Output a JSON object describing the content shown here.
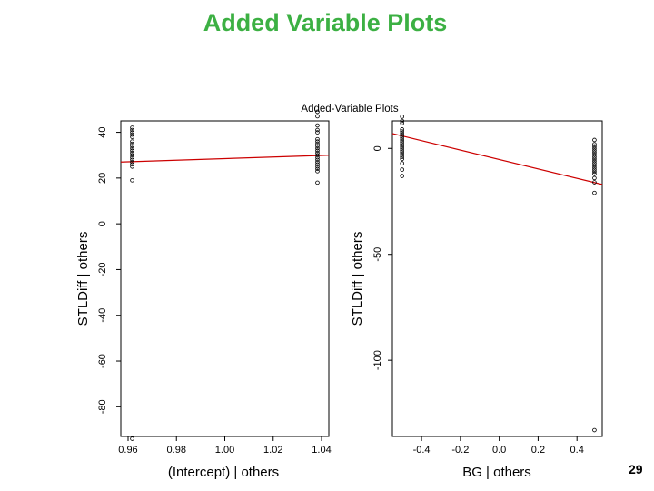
{
  "slide": {
    "title": "Added Variable Plots",
    "page_number": "29"
  },
  "chart_data": {
    "type": "scatter",
    "title": "Added-Variable Plots",
    "panels": [
      {
        "xlabel": "(Intercept) | others",
        "ylabel": "STLDiff  | others",
        "xlim": [
          0.957,
          1.043
        ],
        "ylim": [
          -93,
          45
        ],
        "x_ticks": [
          0.96,
          0.98,
          1.0,
          1.02,
          1.04
        ],
        "x_tick_labels": [
          "0.96",
          "0.98",
          "1.00",
          "1.02",
          "1.04"
        ],
        "y_ticks": [
          -80,
          -60,
          -40,
          -20,
          0,
          20,
          40
        ],
        "y_tick_labels": [
          "-80",
          "-60",
          "-40",
          "-20",
          "0",
          "20",
          "40"
        ],
        "line": {
          "x": [
            0.957,
            1.043
          ],
          "y": [
            27,
            30
          ],
          "color": "#cc0000"
        },
        "clusters": [
          {
            "x": 0.9617,
            "y": [
              42,
              41,
              40,
              39,
              38,
              36,
              35,
              34,
              33,
              32,
              31,
              30,
              29,
              28,
              27,
              26,
              25,
              19,
              -94
            ]
          },
          {
            "x": 1.0383,
            "y": [
              49,
              47,
              43,
              41,
              40,
              37,
              36,
              35,
              34,
              33,
              32,
              31,
              30,
              29,
              28,
              27,
              26,
              25,
              24,
              23,
              18
            ]
          }
        ]
      },
      {
        "xlabel": "BG | others",
        "ylabel": "STLDiff  | others",
        "xlim": [
          -0.55,
          0.53
        ],
        "ylim": [
          -136,
          13
        ],
        "x_ticks": [
          -0.4,
          -0.2,
          0.0,
          0.2,
          0.4
        ],
        "x_tick_labels": [
          "-0.4",
          "-0.2",
          "0.0",
          "0.2",
          "0.4"
        ],
        "y_ticks": [
          -100,
          -50,
          0
        ],
        "y_tick_labels": [
          "-100",
          "-50",
          "0"
        ],
        "line": {
          "x": [
            -0.55,
            0.53
          ],
          "y": [
            7,
            -17
          ],
          "color": "#cc0000"
        },
        "clusters": [
          {
            "x": -0.5,
            "y": [
              15,
              13,
              12,
              9,
              8,
              7,
              6,
              5,
              4,
              3,
              2,
              1,
              0,
              -1,
              -2,
              -3,
              -4,
              -5,
              -7,
              -10,
              -13
            ]
          },
          {
            "x": 0.49,
            "y": [
              4,
              2,
              1,
              0,
              -1,
              -2,
              -3,
              -4,
              -5,
              -6,
              -7,
              -8,
              -9,
              -10,
              -11,
              -12,
              -14,
              -16,
              -21,
              -133
            ]
          }
        ]
      }
    ]
  }
}
